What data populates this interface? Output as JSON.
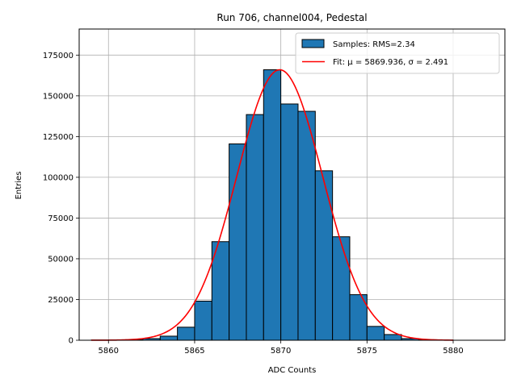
{
  "chart_data": {
    "type": "bar",
    "title": "Run 706, channel004, Pedestal",
    "xlabel": "ADC Counts",
    "ylabel": "Entries",
    "xlim": [
      5858.3,
      5883.0
    ],
    "ylim": [
      0,
      191000
    ],
    "xticks": [
      5860,
      5865,
      5870,
      5875,
      5880
    ],
    "yticks": [
      0,
      25000,
      50000,
      75000,
      100000,
      125000,
      150000,
      175000
    ],
    "grid": true,
    "legend_position": "upper right",
    "bin_width": 1,
    "bins": [
      {
        "x": 5859,
        "count": 100
      },
      {
        "x": 5860,
        "count": 150
      },
      {
        "x": 5861,
        "count": 300
      },
      {
        "x": 5862,
        "count": 1000
      },
      {
        "x": 5863,
        "count": 2500
      },
      {
        "x": 5864,
        "count": 8000
      },
      {
        "x": 5865,
        "count": 24000
      },
      {
        "x": 5866,
        "count": 60500
      },
      {
        "x": 5867,
        "count": 120500
      },
      {
        "x": 5868,
        "count": 138500
      },
      {
        "x": 5869,
        "count": 166000
      },
      {
        "x": 5870,
        "count": 145000
      },
      {
        "x": 5871,
        "count": 140500
      },
      {
        "x": 5872,
        "count": 104000
      },
      {
        "x": 5873,
        "count": 63500
      },
      {
        "x": 5874,
        "count": 28000
      },
      {
        "x": 5875,
        "count": 8500
      },
      {
        "x": 5876,
        "count": 3500
      },
      {
        "x": 5877,
        "count": 1000
      },
      {
        "x": 5878,
        "count": 300
      },
      {
        "x": 5879,
        "count": 100
      }
    ],
    "fit": {
      "mu": 5869.936,
      "sigma": 2.491,
      "amplitude": 166000,
      "x_range": [
        5859,
        5880
      ]
    },
    "series": [
      {
        "name": "Samples: RMS=2.34",
        "kind": "histogram",
        "color": "#1f77b4"
      },
      {
        "name": "Fit: μ = 5869.936, σ = 2.491",
        "kind": "line",
        "color": "#ff0000"
      }
    ]
  }
}
